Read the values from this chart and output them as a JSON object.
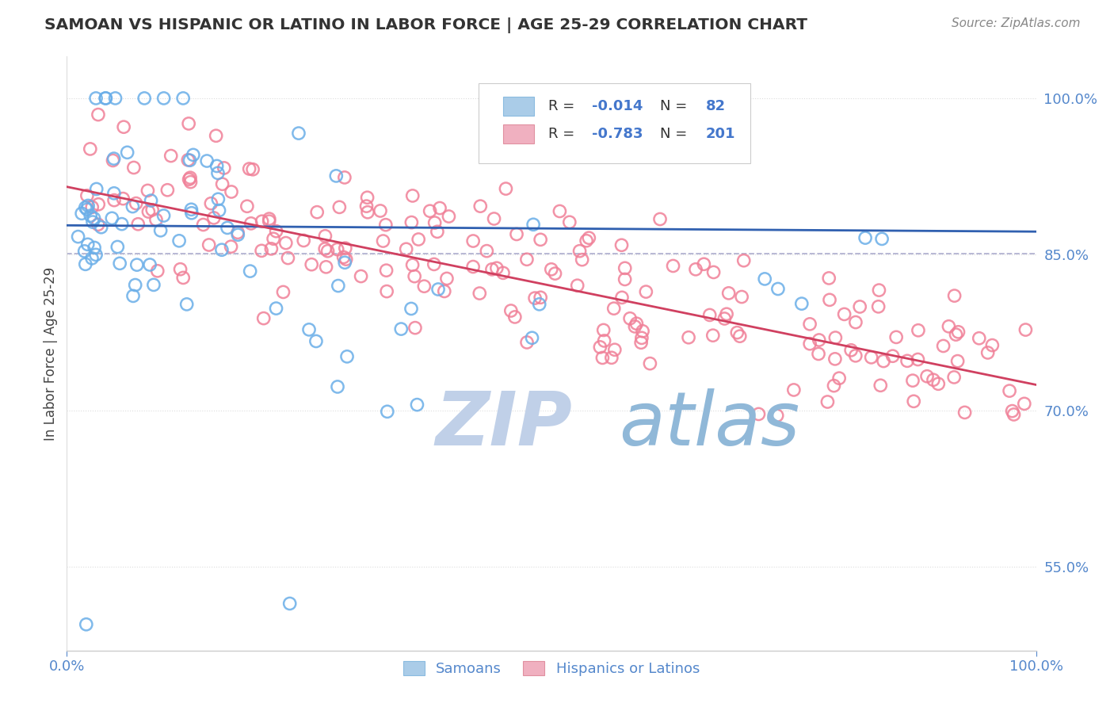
{
  "title": "SAMOAN VS HISPANIC OR LATINO IN LABOR FORCE | AGE 25-29 CORRELATION CHART",
  "source_text": "Source: ZipAtlas.com",
  "ylabel": "In Labor Force | Age 25-29",
  "xmin": 0.0,
  "xmax": 1.0,
  "ymin": 0.47,
  "ymax": 1.04,
  "yticks": [
    0.55,
    0.7,
    0.85,
    1.0
  ],
  "ytick_labels": [
    "55.0%",
    "70.0%",
    "85.0%",
    "100.0%"
  ],
  "ref_line_y": 0.851,
  "blue_R": -0.014,
  "blue_N": 82,
  "pink_R": -0.783,
  "pink_N": 201,
  "blue_marker_color": "#6aaee8",
  "blue_edge_color": "#5090d0",
  "pink_marker_color": "#f08098",
  "pink_edge_color": "#e06080",
  "blue_line_color": "#3060b0",
  "pink_line_color": "#d04060",
  "title_color": "#333333",
  "source_color": "#888888",
  "axis_tick_color": "#5588cc",
  "legend_label_color": "#333333",
  "legend_value_color": "#4477cc",
  "watermark_zip_color": "#c0d0e8",
  "watermark_atlas_color": "#90b8d8",
  "grid_color": "#dddddd",
  "ref_line_color": "#aaaacc",
  "blue_trend_start": 0.878,
  "blue_trend_end": 0.872,
  "pink_trend_start": 0.915,
  "pink_trend_end": 0.725
}
